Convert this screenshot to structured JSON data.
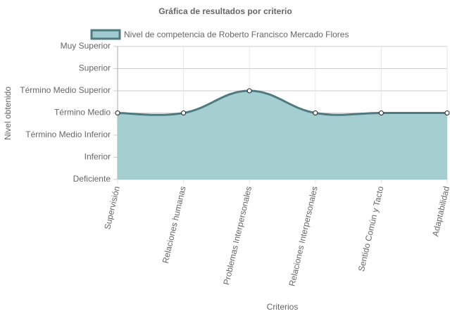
{
  "chart_data": {
    "type": "line",
    "title": "Gráfica de resultados por criterio",
    "xlabel": "Criterios",
    "ylabel": "Nivel obtenido",
    "categories": [
      "Supervisión",
      "Relaciones humanas",
      "Problemas Interpersonales",
      "Relaciones Interpersonales",
      "Sentido Común y Tacto",
      "Adaptabilidad"
    ],
    "series": [
      {
        "name": "Nivel de competencia de Roberto Francisco Mercado Flores",
        "color": "#4e7a80",
        "fill": "#a0cbcf",
        "values": [
          4,
          4,
          5,
          4,
          4,
          4
        ]
      }
    ],
    "ylim": [
      1,
      7
    ],
    "yticks": [
      {
        "value": 1,
        "label": "Deficiente"
      },
      {
        "value": 2,
        "label": "Inferior"
      },
      {
        "value": 3,
        "label": "Término Medio Inferior"
      },
      {
        "value": 4,
        "label": "Término Medio"
      },
      {
        "value": 5,
        "label": "Término Medio Superior"
      },
      {
        "value": 6,
        "label": "Superior"
      },
      {
        "value": 7,
        "label": "Muy Superior"
      }
    ],
    "grid": true
  }
}
